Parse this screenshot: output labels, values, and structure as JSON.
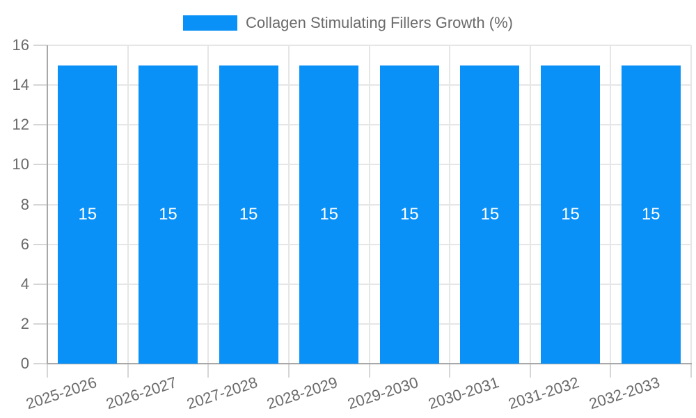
{
  "legend": {
    "label": "Collagen Stimulating Fillers Growth (%)"
  },
  "chart_data": {
    "type": "bar",
    "title": "Collagen Stimulating Fillers Growth (%)",
    "categories": [
      "2025-2026",
      "2026-2027",
      "2027-2028",
      "2028-2029",
      "2029-2030",
      "2030-2031",
      "2031-2032",
      "2032-2033"
    ],
    "values": [
      15,
      15,
      15,
      15,
      15,
      15,
      15,
      15
    ],
    "value_labels": [
      "15",
      "15",
      "15",
      "15",
      "15",
      "15",
      "15",
      "15"
    ],
    "xlabel": "",
    "ylabel": "",
    "ylim": [
      0,
      16
    ],
    "ytick_step": 2,
    "ytick_labels": [
      "0",
      "2",
      "4",
      "6",
      "8",
      "10",
      "12",
      "14",
      "16"
    ],
    "grid": true,
    "legend_position": "top",
    "colors": {
      "bar": "#0a91f7",
      "bar_value_text": "#ffffff",
      "axis_text": "#6b6b6b",
      "grid": "#e6e6e6",
      "tick": "#d6d6d6",
      "axis_line": "#a8a8a8",
      "background": "#ffffff"
    }
  }
}
